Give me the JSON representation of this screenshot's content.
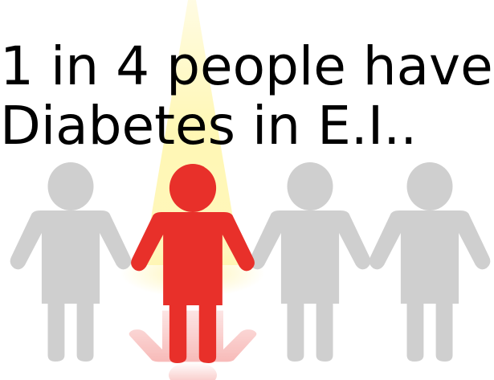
{
  "headline": {
    "line1": "1 in 4 people have",
    "line2": "Diabetes in E.I.."
  },
  "figures": [
    {
      "name": "person-1",
      "highlighted": false
    },
    {
      "name": "person-2",
      "highlighted": true
    },
    {
      "name": "person-3",
      "highlighted": false
    },
    {
      "name": "person-4",
      "highlighted": false
    }
  ],
  "colors": {
    "highlight": "#e8302a",
    "neutral": "#cfcfcf",
    "spotlight": "#fff3a0",
    "text": "#000000"
  },
  "icons": [
    "person-icon",
    "spotlight-beam"
  ]
}
